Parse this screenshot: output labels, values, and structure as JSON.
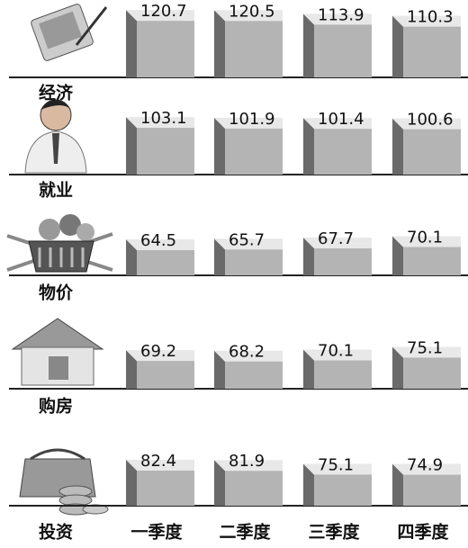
{
  "chart_data": {
    "type": "bar",
    "categories": [
      "一季度",
      "二季度",
      "三季度",
      "四季度"
    ],
    "color": "#b4b4b4",
    "series": [
      {
        "name": "经济",
        "values": [
          120.7,
          120.5,
          113.9,
          110.3
        ]
      },
      {
        "name": "就业",
        "values": [
          103.1,
          101.9,
          101.4,
          100.6
        ]
      },
      {
        "name": "物价",
        "values": [
          64.5,
          65.7,
          67.7,
          70.1
        ]
      },
      {
        "name": "购房",
        "values": [
          69.2,
          68.2,
          70.1,
          75.1
        ]
      },
      {
        "name": "投资",
        "values": [
          82.4,
          81.9,
          75.1,
          74.9
        ]
      }
    ]
  }
}
